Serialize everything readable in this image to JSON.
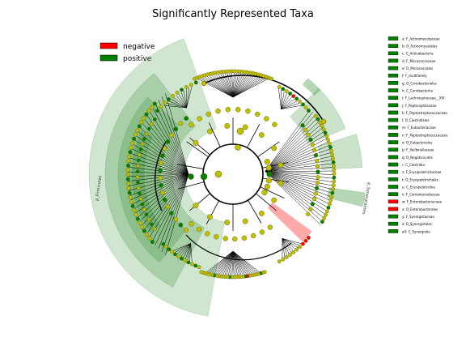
{
  "title": "Significantly Represented Taxa",
  "colors": {
    "negative": "#ff0000",
    "positive": "#008000",
    "node_fill": "#c0c000",
    "node_stroke": "#555500",
    "branch": "#000000",
    "band_positive": "#2e8b2e",
    "band_negative": "#ff4040"
  },
  "chart_data": {
    "type": "cladogram",
    "title": "Significantly Represented Taxa",
    "legend": {
      "placement": "top-left",
      "entries": [
        {
          "label": "negative",
          "color": "#ff0000"
        },
        {
          "label": "positive",
          "color": "#008000"
        }
      ]
    },
    "clade_legend": {
      "placement": "right",
      "entries": [
        {
          "key": "a",
          "label": "a: F_Actinomycetaceae",
          "class": "positive"
        },
        {
          "key": "b",
          "label": "b: O_Actinomycetales",
          "class": "positive"
        },
        {
          "key": "c",
          "label": "c: C_Actinobacteria",
          "class": "positive"
        },
        {
          "key": "d",
          "label": "d: F_Micrococcaceae",
          "class": "positive"
        },
        {
          "key": "e",
          "label": "e: O_Micrococcales",
          "class": "positive"
        },
        {
          "key": "f",
          "label": "f: F_multifamily",
          "class": "positive"
        },
        {
          "key": "g",
          "label": "g: O_Coriobacteriales",
          "class": "positive"
        },
        {
          "key": "h",
          "label": "h: C_Coriobacteriia",
          "class": "positive"
        },
        {
          "key": "i",
          "label": "i: F_Lachnospiraceae__XIV",
          "class": "positive"
        },
        {
          "key": "j",
          "label": "j: F_Peptoniphilaceae",
          "class": "positive"
        },
        {
          "key": "k",
          "label": "k: F_Peptostreptococcaceae",
          "class": "positive"
        },
        {
          "key": "l",
          "label": "l: O_Clostridiales",
          "class": "positive"
        },
        {
          "key": "m",
          "label": "m: F_Eubacteriaceae",
          "class": "positive"
        },
        {
          "key": "n",
          "label": "n: F_Peptostreptococcaceae",
          "class": "positive"
        },
        {
          "key": "o",
          "label": "o: O_Eubacteriales",
          "class": "positive"
        },
        {
          "key": "p",
          "label": "p: F_Veillonellaceae",
          "class": "positive"
        },
        {
          "key": "q",
          "label": "q: O_Negativicutes",
          "class": "positive"
        },
        {
          "key": "r",
          "label": "r: C_Clostridia",
          "class": "positive"
        },
        {
          "key": "s",
          "label": "s: F_Erysipelotrichaceae",
          "class": "positive"
        },
        {
          "key": "t",
          "label": "t: O_Erysipelotrichales",
          "class": "positive"
        },
        {
          "key": "u",
          "label": "u: C_Erysipelotrichia",
          "class": "positive"
        },
        {
          "key": "v",
          "label": "v: F_Comamonadaceae",
          "class": "positive"
        },
        {
          "key": "w",
          "label": "w: F_Enterobacteriaceae",
          "class": "negative"
        },
        {
          "key": "x",
          "label": "x: O_Enterobacterales",
          "class": "negative"
        },
        {
          "key": "y",
          "label": "y: F_Synergistaceae",
          "class": "positive"
        },
        {
          "key": "z",
          "label": "z: O_Synergistales",
          "class": "positive"
        },
        {
          "key": "a0",
          "label": "a0: C_Synergistia",
          "class": "positive"
        }
      ]
    },
    "sector_labels": [
      "p_Firmicutes",
      "p_Synergistetes"
    ]
  }
}
